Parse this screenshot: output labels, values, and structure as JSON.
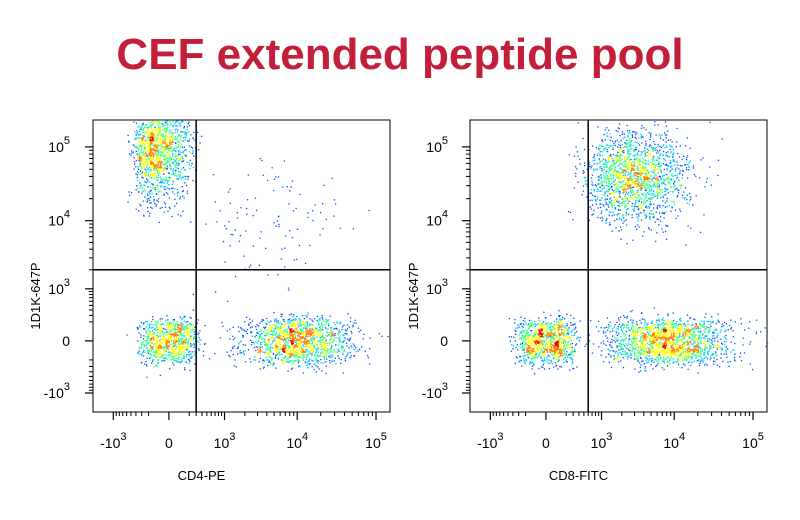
{
  "title": "CEF extended peptide pool",
  "colors": {
    "title": "#c41e3a",
    "density": [
      "#0000b4",
      "#0050ff",
      "#00c8ff",
      "#40ff80",
      "#ffff00",
      "#ff8000",
      "#ff0000"
    ]
  },
  "chart_data": [
    {
      "type": "scatter",
      "subtype": "flow-cytometry-density-pseudocolor",
      "xlabel": "CD4-PE",
      "ylabel": "1D1K-647P",
      "x_ticks": [
        {
          "value": -1000,
          "label": "-10",
          "exp": "3"
        },
        {
          "value": 0,
          "label": "0",
          "exp": ""
        },
        {
          "value": 1000,
          "label": "10",
          "exp": "3"
        },
        {
          "value": 10000,
          "label": "10",
          "exp": "4"
        },
        {
          "value": 100000,
          "label": "10",
          "exp": "5"
        }
      ],
      "y_ticks": [
        {
          "value": -1000,
          "label": "-10",
          "exp": "3"
        },
        {
          "value": 0,
          "label": "0",
          "exp": ""
        },
        {
          "value": 1000,
          "label": "10",
          "exp": "3"
        },
        {
          "value": 10000,
          "label": "10",
          "exp": "4"
        },
        {
          "value": 100000,
          "label": "10",
          "exp": "5"
        }
      ],
      "xlim": [
        -2000,
        150000
      ],
      "ylim": [
        -2000,
        230000
      ],
      "gates": {
        "x": 300,
        "y": 2000
      },
      "populations": [
        {
          "name": "double-negative",
          "center": [
            0,
            0
          ],
          "spread": [
            150,
            120
          ],
          "share": 0.18
        },
        {
          "name": "CD4-negative 1D1K-positive",
          "center": [
            -100,
            100000
          ],
          "spread": [
            150,
            0.35
          ],
          "share": 0.3
        },
        {
          "name": "CD4-positive 1D1K-negative",
          "center": [
            10000,
            0
          ],
          "spread": [
            0.35,
            120
          ],
          "share": 0.3
        },
        {
          "name": "CD4-positive 1D1K-positive",
          "center": [
            5000,
            8000
          ],
          "spread": [
            0.5,
            0.5
          ],
          "share": 0.02
        }
      ]
    },
    {
      "type": "scatter",
      "subtype": "flow-cytometry-density-pseudocolor",
      "xlabel": "CD8-FITC",
      "ylabel": "1D1K-647P",
      "x_ticks": [
        {
          "value": -1000,
          "label": "-10",
          "exp": "3"
        },
        {
          "value": 0,
          "label": "0",
          "exp": ""
        },
        {
          "value": 1000,
          "label": "10",
          "exp": "3"
        },
        {
          "value": 10000,
          "label": "10",
          "exp": "4"
        },
        {
          "value": 100000,
          "label": "10",
          "exp": "5"
        }
      ],
      "y_ticks": [
        {
          "value": -1000,
          "label": "-10",
          "exp": "3"
        },
        {
          "value": 0,
          "label": "0",
          "exp": ""
        },
        {
          "value": 1000,
          "label": "10",
          "exp": "3"
        },
        {
          "value": 10000,
          "label": "10",
          "exp": "4"
        },
        {
          "value": 100000,
          "label": "10",
          "exp": "5"
        }
      ],
      "xlim": [
        -2000,
        150000
      ],
      "ylim": [
        -2000,
        230000
      ],
      "gates": {
        "x": 600,
        "y": 2000
      },
      "populations": [
        {
          "name": "double-negative",
          "center": [
            0,
            0
          ],
          "spread": [
            150,
            120
          ],
          "share": 0.2
        },
        {
          "name": "CD8-positive 1D1K-negative",
          "center": [
            8000,
            0
          ],
          "spread": [
            0.4,
            120
          ],
          "share": 0.35
        },
        {
          "name": "CD8-positive 1D1K-positive",
          "center": [
            3000,
            40000
          ],
          "spread": [
            0.35,
            0.3
          ],
          "share": 0.35
        }
      ]
    }
  ]
}
